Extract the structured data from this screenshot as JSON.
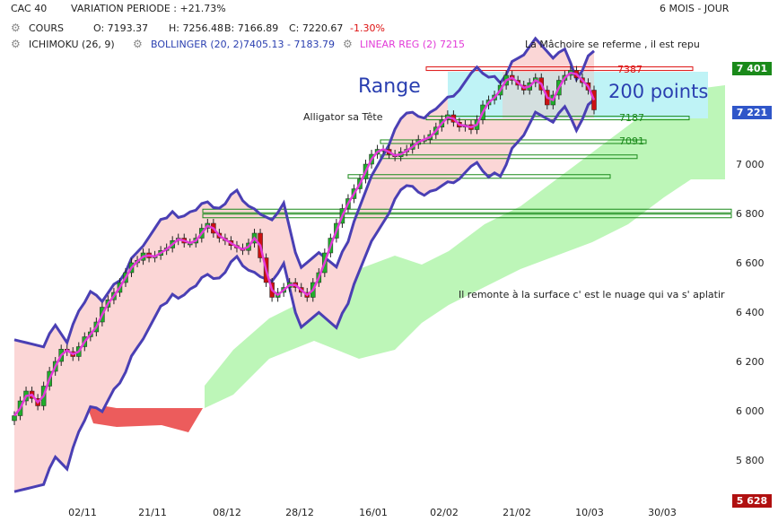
{
  "header": {
    "instrument": "CAC 40",
    "variation": "VARIATION PERIODE : +21.73%",
    "period": "6 MOIS - JOUR",
    "cours_label": "COURS",
    "open": "O: 7193.37",
    "high": "H: 7256.48",
    "low": "B: 7166.89",
    "close": "C: 7220.67",
    "change": "-1.30%",
    "ichimoku": "ICHIMOKU (26, 9)",
    "bollinger": "BOLLINGER (20, 2)",
    "bollinger_values": "7405.13 - 7183.79",
    "linreg": "LINEAR REG (2)",
    "linreg_value": "7215"
  },
  "annotations": {
    "range": "Range",
    "points": "200 points",
    "alligator": "Alligator sa Tête",
    "machoire": "La Mâchoire se referme , il est repu",
    "nuage": "Il remonte à la surface  c' est le nuage qui va s' aplatir"
  },
  "levels": {
    "resistance": "7387",
    "support": "7187",
    "support2": "7091"
  },
  "price_tags": {
    "high": "7 401",
    "last": "7 221",
    "low": "5 628"
  },
  "colors": {
    "candle_up": "#1fae2a",
    "candle_down": "#cc1111",
    "bollinger": "#4a3fb4",
    "linreg": "#e23ad8",
    "cloud_green": "#b6f5b0",
    "cloud_red": "#ec5c5c",
    "band_fill": "#fbd6d6",
    "range_box": "#d9d9d9",
    "range_cyan": "#bff3f6",
    "tag_green": "#1a8a1a",
    "tag_blue": "#2f56c9",
    "tag_red": "#b01010"
  },
  "chart_data": {
    "type": "candlestick",
    "yticks": [
      "7 000",
      "6 800",
      "6 600",
      "6 400",
      "6 200",
      "6 000",
      "5 800"
    ],
    "ytick_values": [
      7000,
      6800,
      6600,
      6400,
      6200,
      6000,
      5800
    ],
    "xticks": [
      "02/11",
      "21/11",
      "08/12",
      "28/12",
      "16/01",
      "02/02",
      "21/02",
      "10/03",
      "30/03"
    ],
    "ylim": [
      5628,
      7401
    ],
    "close": [
      5980,
      6040,
      6080,
      6050,
      6020,
      6100,
      6160,
      6200,
      6250,
      6240,
      6220,
      6260,
      6300,
      6320,
      6360,
      6420,
      6450,
      6480,
      6520,
      6560,
      6600,
      6610,
      6640,
      6620,
      6630,
      6650,
      6660,
      6690,
      6700,
      6680,
      6680,
      6700,
      6740,
      6760,
      6720,
      6700,
      6690,
      6670,
      6660,
      6650,
      6680,
      6720,
      6620,
      6520,
      6460,
      6480,
      6500,
      6520,
      6500,
      6480,
      6460,
      6520,
      6560,
      6640,
      6700,
      6760,
      6820,
      6860,
      6900,
      6940,
      7000,
      7040,
      7060,
      7060,
      7040,
      7030,
      7050,
      7060,
      7080,
      7100,
      7100,
      7120,
      7150,
      7180,
      7200,
      7170,
      7150,
      7160,
      7140,
      7180,
      7240,
      7260,
      7280,
      7320,
      7360,
      7340,
      7320,
      7300,
      7330,
      7350,
      7300,
      7240,
      7280,
      7340,
      7360,
      7380,
      7350,
      7330,
      7300,
      7220
    ],
    "levels": [
      7387,
      7187,
      7091,
      7030,
      6950,
      6810,
      6790
    ]
  }
}
